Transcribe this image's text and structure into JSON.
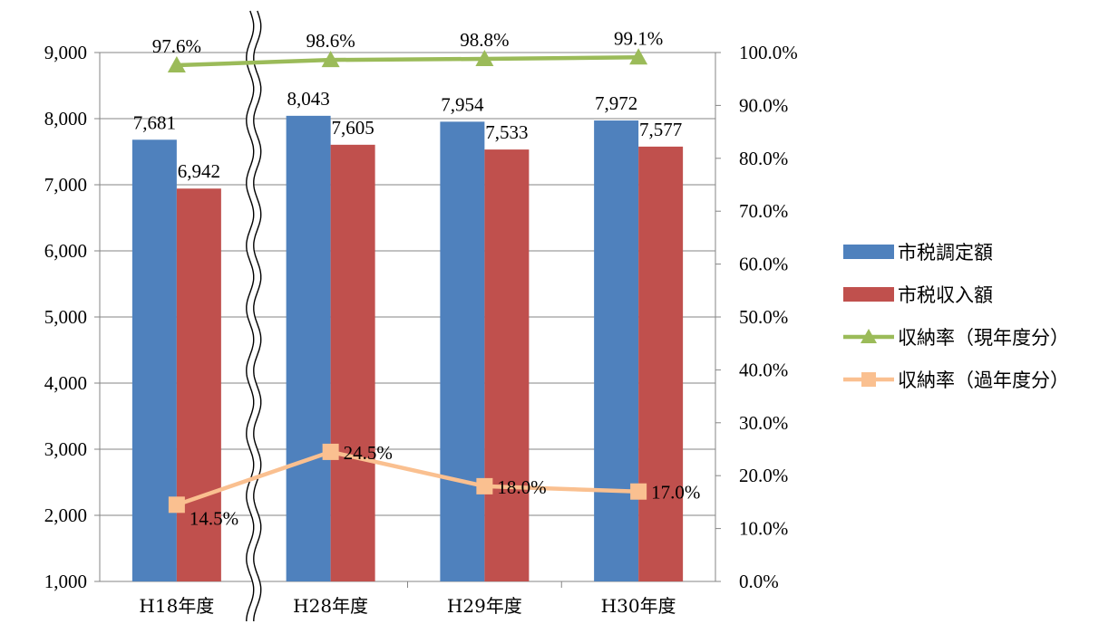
{
  "chart_data": {
    "type": "bar",
    "categories": [
      "H18年度",
      "H28年度",
      "H29年度",
      "H30年度"
    ],
    "series": [
      {
        "name": "市税調定額",
        "type": "bar",
        "axis": "left",
        "color": "#4F81BD",
        "values": [
          7681,
          8043,
          7954,
          7972
        ],
        "labels": [
          "7,681",
          "8,043",
          "7,954",
          "7,972"
        ]
      },
      {
        "name": "市税収入額",
        "type": "bar",
        "axis": "left",
        "color": "#C0504D",
        "values": [
          6942,
          7605,
          7533,
          7577
        ],
        "labels": [
          "6,942",
          "7,605",
          "7,533",
          "7,577"
        ]
      },
      {
        "name": "収納率（現年度分）",
        "type": "line",
        "axis": "right",
        "marker": "triangle",
        "color": "#9BBB59",
        "values": [
          97.6,
          98.6,
          98.8,
          99.1
        ],
        "labels": [
          "97.6%",
          "98.6%",
          "98.8%",
          "99.1%"
        ]
      },
      {
        "name": "収納率（過年度分）",
        "type": "line",
        "axis": "right",
        "marker": "square",
        "color": "#FAC090",
        "values": [
          14.5,
          24.5,
          18.0,
          17.0
        ],
        "labels": [
          "14.5%",
          "24.5%",
          "18.0%",
          "17.0%"
        ]
      }
    ],
    "y_left": {
      "ylim": [
        1000,
        9000
      ],
      "ticks": [
        "1,000",
        "2,000",
        "3,000",
        "4,000",
        "5,000",
        "6,000",
        "7,000",
        "8,000",
        "9,000"
      ]
    },
    "y_right": {
      "ylim": [
        0,
        100
      ],
      "ticks": [
        "0.0%",
        "10.0%",
        "20.0%",
        "30.0%",
        "40.0%",
        "50.0%",
        "60.0%",
        "70.0%",
        "80.0%",
        "90.0%",
        "100.0%"
      ]
    },
    "axis_break": "between H18年度 and H28年度",
    "grid": "horizontal",
    "legend_position": "right"
  }
}
